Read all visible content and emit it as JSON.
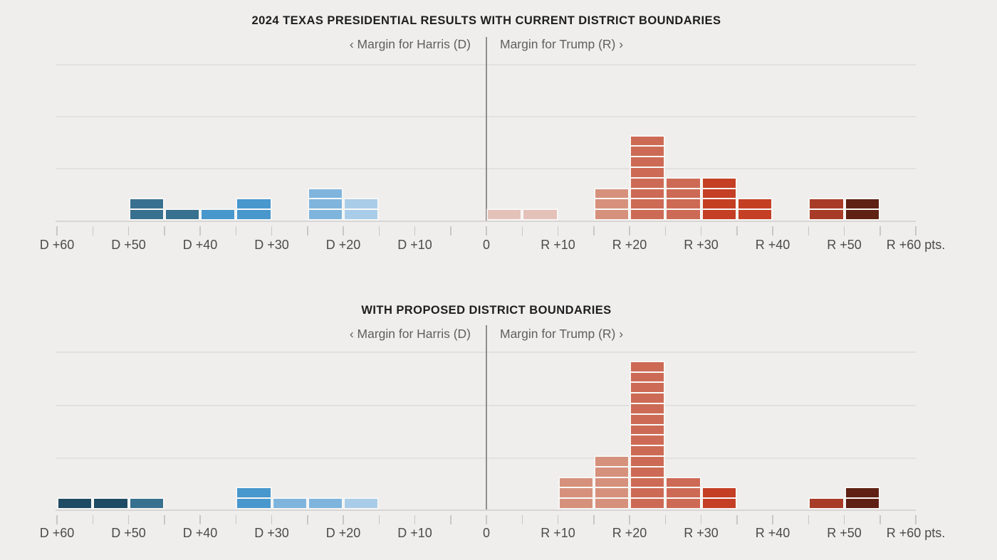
{
  "background_color": "#efeeed",
  "palette": {
    "dem_60s": "#1f4a63",
    "dem_40s": "#38708f",
    "dem_30s": "#4897cd",
    "dem_20s": "#7fb5dd",
    "dem_10s": "#a9cde8",
    "rep_0s": "#e4c1b9",
    "rep_10s": "#d6917d",
    "rep_20s": "#cd6a55",
    "rep_30s": "#c43f24",
    "rep_40s": "#a83b27",
    "rep_50s": "#5e2113"
  },
  "chart_data": [
    {
      "type": "bar",
      "subtype": "unit-stacked-histogram",
      "title": "2024 TEXAS PRESIDENTIAL RESULTS WITH CURRENT DISTRICT BOUNDARIES",
      "left_axis_label": "‹ Margin for Harris (D)",
      "right_axis_label": "Margin for Trump (R) ›",
      "xlim": [
        -60,
        60
      ],
      "grid": "horizontal",
      "x_ticks": [
        {
          "value": -60,
          "label": "D +60"
        },
        {
          "value": -50,
          "label": "D +50"
        },
        {
          "value": -40,
          "label": "D +40"
        },
        {
          "value": -30,
          "label": "D +30"
        },
        {
          "value": -20,
          "label": "D +20"
        },
        {
          "value": -10,
          "label": "D +10"
        },
        {
          "value": 0,
          "label": "0"
        },
        {
          "value": 10,
          "label": "R +10"
        },
        {
          "value": 20,
          "label": "R +20"
        },
        {
          "value": 30,
          "label": "R +30"
        },
        {
          "value": 40,
          "label": "R +40"
        },
        {
          "value": 50,
          "label": "R +50"
        },
        {
          "value": 60,
          "label": "R +60 pts."
        }
      ],
      "bins": [
        {
          "from": -50,
          "to": -45,
          "count": 2,
          "color": "#38708f"
        },
        {
          "from": -45,
          "to": -40,
          "count": 1,
          "color": "#38708f"
        },
        {
          "from": -40,
          "to": -35,
          "count": 1,
          "color": "#4897cd"
        },
        {
          "from": -35,
          "to": -30,
          "count": 2,
          "color": "#4897cd"
        },
        {
          "from": -25,
          "to": -20,
          "count": 3,
          "color": "#7fb5dd"
        },
        {
          "from": -20,
          "to": -15,
          "count": 2,
          "color": "#a9cde8"
        },
        {
          "from": 0,
          "to": 5,
          "count": 1,
          "color": "#e4c1b9"
        },
        {
          "from": 5,
          "to": 10,
          "count": 1,
          "color": "#e4c1b9"
        },
        {
          "from": 15,
          "to": 20,
          "count": 3,
          "color": "#d6917d"
        },
        {
          "from": 20,
          "to": 25,
          "count": 8,
          "color": "#cd6a55"
        },
        {
          "from": 25,
          "to": 30,
          "count": 4,
          "color": "#cd6a55"
        },
        {
          "from": 30,
          "to": 35,
          "count": 4,
          "color": "#c43f24"
        },
        {
          "from": 35,
          "to": 40,
          "count": 2,
          "color": "#c43f24"
        },
        {
          "from": 45,
          "to": 50,
          "count": 2,
          "color": "#a83b27"
        },
        {
          "from": 50,
          "to": 55,
          "count": 2,
          "color": "#5e2113"
        }
      ]
    },
    {
      "type": "bar",
      "subtype": "unit-stacked-histogram",
      "title": "WITH PROPOSED DISTRICT BOUNDARIES",
      "left_axis_label": "‹ Margin for Harris (D)",
      "right_axis_label": "Margin for Trump (R) ›",
      "xlim": [
        -60,
        60
      ],
      "grid": "horizontal",
      "x_ticks": [
        {
          "value": -60,
          "label": "D +60"
        },
        {
          "value": -50,
          "label": "D +50"
        },
        {
          "value": -40,
          "label": "D +40"
        },
        {
          "value": -30,
          "label": "D +30"
        },
        {
          "value": -20,
          "label": "D +20"
        },
        {
          "value": -10,
          "label": "D +10"
        },
        {
          "value": 0,
          "label": "0"
        },
        {
          "value": 10,
          "label": "R +10"
        },
        {
          "value": 20,
          "label": "R +20"
        },
        {
          "value": 30,
          "label": "R +30"
        },
        {
          "value": 40,
          "label": "R +40"
        },
        {
          "value": 50,
          "label": "R +50"
        },
        {
          "value": 60,
          "label": "R +60 pts."
        }
      ],
      "bins": [
        {
          "from": -60,
          "to": -55,
          "count": 1,
          "color": "#1f4a63"
        },
        {
          "from": -55,
          "to": -50,
          "count": 1,
          "color": "#1f4a63"
        },
        {
          "from": -50,
          "to": -45,
          "count": 1,
          "color": "#38708f"
        },
        {
          "from": -35,
          "to": -30,
          "count": 2,
          "color": "#4897cd"
        },
        {
          "from": -30,
          "to": -25,
          "count": 1,
          "color": "#7fb5dd"
        },
        {
          "from": -25,
          "to": -20,
          "count": 1,
          "color": "#7fb5dd"
        },
        {
          "from": -20,
          "to": -15,
          "count": 1,
          "color": "#a9cde8"
        },
        {
          "from": 10,
          "to": 15,
          "count": 3,
          "color": "#d6917d"
        },
        {
          "from": 15,
          "to": 20,
          "count": 5,
          "color": "#d6917d"
        },
        {
          "from": 20,
          "to": 25,
          "count": 14,
          "color": "#cd6a55"
        },
        {
          "from": 25,
          "to": 30,
          "count": 3,
          "color": "#cd6a55"
        },
        {
          "from": 30,
          "to": 35,
          "count": 2,
          "color": "#c43f24"
        },
        {
          "from": 45,
          "to": 50,
          "count": 1,
          "color": "#a83b27"
        },
        {
          "from": 50,
          "to": 55,
          "count": 2,
          "color": "#5e2113"
        }
      ]
    }
  ]
}
